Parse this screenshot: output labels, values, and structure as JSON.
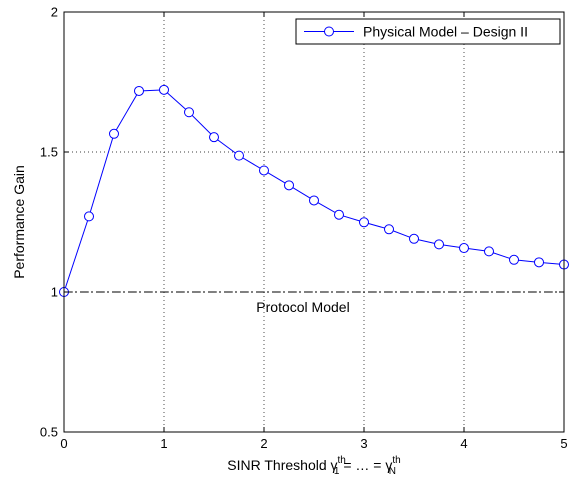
{
  "chart_data": {
    "type": "line",
    "title": "",
    "xlabel": {
      "prefix": "SINR Threshold ",
      "sym1": "γ",
      "sup1": "th",
      "sub1": "1",
      "mid": " = … = ",
      "sym2": "γ",
      "sup2": "th",
      "sub2": "N"
    },
    "ylabel": "Performance Gain",
    "xlim": [
      0,
      5
    ],
    "ylim": [
      0.5,
      2
    ],
    "xticks": [
      0,
      1,
      2,
      3,
      4,
      5
    ],
    "xtick_labels": [
      "0",
      "1",
      "2",
      "3",
      "4",
      "5"
    ],
    "yticks": [
      0.5,
      1,
      1.5,
      2
    ],
    "ytick_labels": [
      "0.5",
      "1",
      "1.5",
      "2"
    ],
    "grid": true,
    "legend": {
      "placement": "top-right"
    },
    "series": [
      {
        "name": "Physical Model – Design II",
        "color": "#0000ff",
        "marker": "circle",
        "x": [
          0,
          0.25,
          0.5,
          0.75,
          1,
          1.25,
          1.5,
          1.75,
          2,
          2.25,
          2.5,
          2.75,
          3,
          3.25,
          3.5,
          3.75,
          4,
          4.25,
          4.5,
          4.75,
          5
        ],
        "y": [
          1.0,
          1.27,
          1.565,
          1.718,
          1.722,
          1.642,
          1.553,
          1.487,
          1.434,
          1.381,
          1.327,
          1.276,
          1.249,
          1.224,
          1.19,
          1.17,
          1.157,
          1.145,
          1.115,
          1.106,
          1.098
        ]
      }
    ],
    "reference_line": {
      "y": 1,
      "style": "dash-dot",
      "color": "#000000",
      "label": "Protocol Model"
    }
  }
}
